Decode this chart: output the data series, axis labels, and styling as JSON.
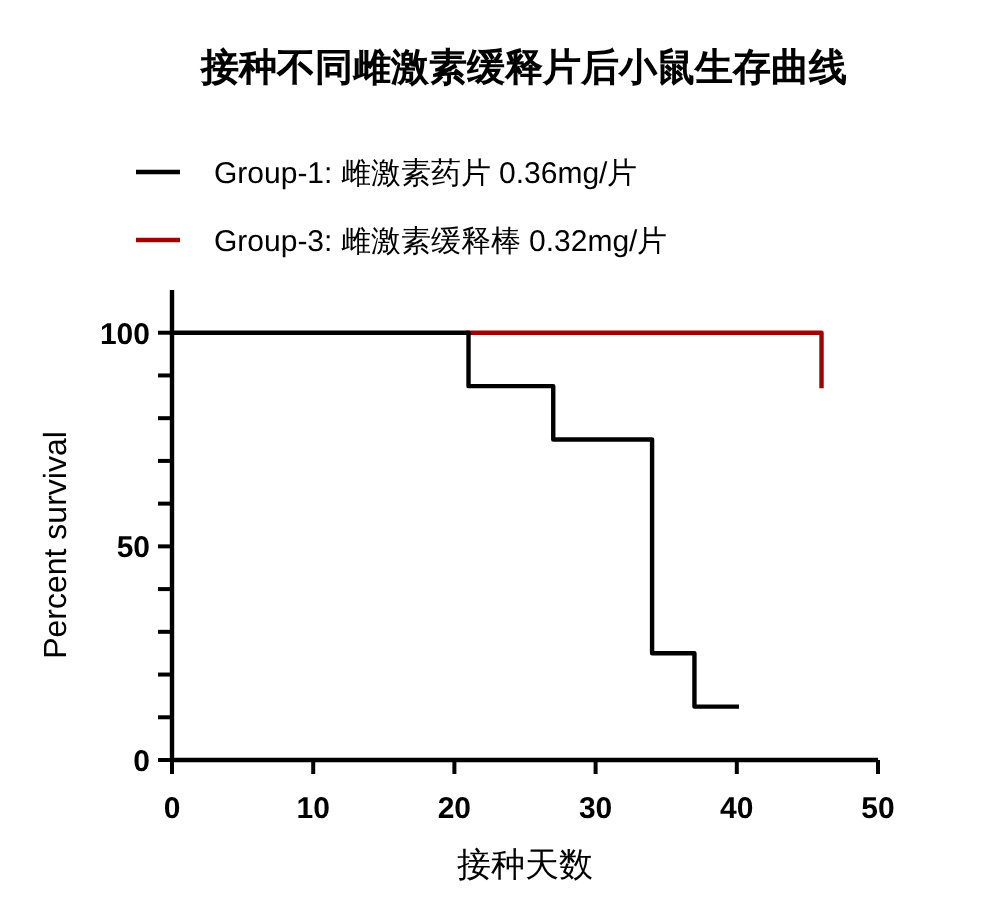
{
  "chart_data": {
    "type": "step",
    "title": "接种不同雌激素缓释片后小鼠生存曲线",
    "xlabel": "接种天数",
    "ylabel": "Percent survival",
    "series": [
      {
        "name": "Group-1: 雌激素药片 0.36mg/片",
        "color": "#000000",
        "x": [
          0,
          21,
          27,
          34,
          37,
          40
        ],
        "values": [
          100,
          87.5,
          75,
          25,
          12.5,
          12.5
        ]
      },
      {
        "name": "Group-3: 雌激素缓释棒 0.32mg/片",
        "color": "#a00000",
        "x": [
          21,
          46
        ],
        "values": [
          100,
          87.5
        ]
      }
    ],
    "xlim": [
      0,
      50
    ],
    "xticks": [
      0,
      10,
      20,
      30,
      40,
      50
    ],
    "ylim": [
      0,
      110
    ],
    "yticks": [
      0,
      {
        "value": 10,
        "label": null
      },
      {
        "value": 20,
        "label": null
      },
      {
        "value": 30,
        "label": null
      },
      {
        "value": 40,
        "label": null
      },
      50,
      {
        "value": 60,
        "label": null
      },
      {
        "value": 70,
        "label": null
      },
      {
        "value": 80,
        "label": null
      },
      {
        "value": 90,
        "label": null
      },
      100
    ],
    "legend": "top"
  }
}
